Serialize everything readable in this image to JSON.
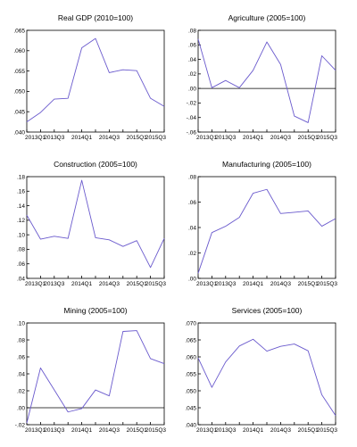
{
  "colors": {
    "line": "#6a5acd",
    "axis": "#000000",
    "background": "#ffffff"
  },
  "chart_data": [
    {
      "type": "line",
      "title": "Real GDP (2010=100)",
      "x": [
        "2013Q1",
        "2013Q2",
        "2013Q3",
        "2013Q4",
        "2014Q1",
        "2014Q2",
        "2014Q3",
        "2014Q4",
        "2015Q1",
        "2015Q2",
        "2015Q3"
      ],
      "x_tick_labels": [
        "2013Q1",
        "2013Q3",
        "2014Q1",
        "2014Q3",
        "2015Q1",
        "2015Q3"
      ],
      "y_tick_labels": [
        ".040",
        ".045",
        ".050",
        ".055",
        ".060",
        ".065"
      ],
      "ylim": [
        0.04,
        0.065
      ],
      "series": [
        {
          "values": [
            0.0425,
            0.0448,
            0.0481,
            0.0483,
            0.0607,
            0.063,
            0.0546,
            0.0553,
            0.0551,
            0.0483,
            0.0463
          ]
        }
      ]
    },
    {
      "type": "line",
      "title": "Agriculture (2005=100)",
      "x": [
        "2013Q1",
        "2013Q2",
        "2013Q3",
        "2013Q4",
        "2014Q1",
        "2014Q2",
        "2014Q3",
        "2014Q4",
        "2015Q1",
        "2015Q2",
        "2015Q3"
      ],
      "x_tick_labels": [
        "2013Q1",
        "2013Q3",
        "2014Q1",
        "2014Q3",
        "2015Q1",
        "2015Q3"
      ],
      "y_tick_labels": [
        "-.06",
        "-.04",
        "-.02",
        ".00",
        ".02",
        ".04",
        ".06",
        ".08"
      ],
      "ylim": [
        -0.06,
        0.08
      ],
      "zero_line": true,
      "series": [
        {
          "values": [
            0.068,
            0.001,
            0.011,
            0.001,
            0.025,
            0.064,
            0.033,
            -0.038,
            -0.047,
            0.045,
            0.025
          ]
        }
      ]
    },
    {
      "type": "line",
      "title": "Construction (2005=100)",
      "x": [
        "2013Q1",
        "2013Q2",
        "2013Q3",
        "2013Q4",
        "2014Q1",
        "2014Q2",
        "2014Q3",
        "2014Q4",
        "2015Q1",
        "2015Q2",
        "2015Q3"
      ],
      "x_tick_labels": [
        "2013Q1",
        "2013Q3",
        "2014Q1",
        "2014Q3",
        "2015Q1",
        "2015Q3"
      ],
      "y_tick_labels": [
        ".04",
        ".06",
        ".08",
        ".10",
        ".12",
        ".14",
        ".16",
        ".18"
      ],
      "ylim": [
        0.04,
        0.18
      ],
      "series": [
        {
          "values": [
            0.127,
            0.094,
            0.098,
            0.095,
            0.175,
            0.096,
            0.093,
            0.084,
            0.092,
            0.055,
            0.095
          ]
        }
      ]
    },
    {
      "type": "line",
      "title": "Manufacturing (2005=100)",
      "x": [
        "2013Q1",
        "2013Q2",
        "2013Q3",
        "2013Q4",
        "2014Q1",
        "2014Q2",
        "2014Q3",
        "2014Q4",
        "2015Q1",
        "2015Q2",
        "2015Q3"
      ],
      "x_tick_labels": [
        "2013Q1",
        "2013Q3",
        "2014Q1",
        "2014Q3",
        "2015Q1",
        "2015Q3"
      ],
      "y_tick_labels": [
        ".00",
        ".02",
        ".04",
        ".06",
        ".08"
      ],
      "ylim": [
        0.0,
        0.08
      ],
      "series": [
        {
          "values": [
            0.004,
            0.036,
            0.041,
            0.048,
            0.067,
            0.07,
            0.051,
            0.052,
            0.053,
            0.041,
            0.047
          ]
        }
      ]
    },
    {
      "type": "line",
      "title": "Mining (2005=100)",
      "x": [
        "2013Q1",
        "2013Q2",
        "2013Q3",
        "2013Q4",
        "2014Q1",
        "2014Q2",
        "2014Q3",
        "2014Q4",
        "2015Q1",
        "2015Q2",
        "2015Q3"
      ],
      "x_tick_labels": [
        "2013Q1",
        "2013Q3",
        "2014Q1",
        "2014Q3",
        "2015Q1",
        "2015Q3"
      ],
      "y_tick_labels": [
        "-.02",
        ".00",
        ".02",
        ".04",
        ".06",
        ".08",
        ".10"
      ],
      "ylim": [
        -0.02,
        0.1
      ],
      "zero_line": true,
      "series": [
        {
          "values": [
            -0.018,
            0.047,
            0.021,
            -0.005,
            -0.001,
            0.021,
            0.014,
            0.09,
            0.091,
            0.058,
            0.052
          ]
        }
      ]
    },
    {
      "type": "line",
      "title": "Services (2005=100)",
      "x": [
        "2013Q1",
        "2013Q2",
        "2013Q3",
        "2013Q4",
        "2014Q1",
        "2014Q2",
        "2014Q3",
        "2014Q4",
        "2015Q1",
        "2015Q2",
        "2015Q3"
      ],
      "x_tick_labels": [
        "2013Q1",
        "2013Q3",
        "2014Q1",
        "2014Q3",
        "2015Q1",
        "2015Q3"
      ],
      "y_tick_labels": [
        ".040",
        ".045",
        ".050",
        ".055",
        ".060",
        ".065",
        ".070"
      ],
      "ylim": [
        0.04,
        0.07
      ],
      "series": [
        {
          "values": [
            0.0597,
            0.051,
            0.0585,
            0.0632,
            0.0652,
            0.0617,
            0.0631,
            0.0638,
            0.0618,
            0.0488,
            0.0427
          ]
        }
      ]
    }
  ]
}
